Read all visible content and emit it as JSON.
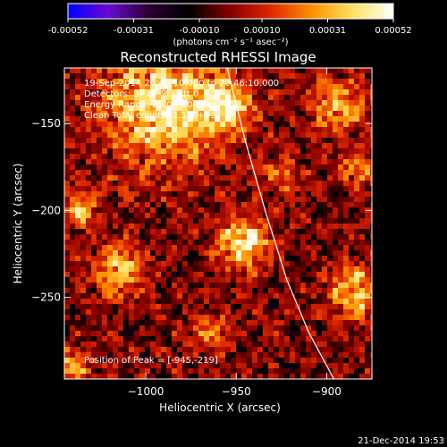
{
  "colorbar": {
    "tick_labels": [
      "-0.00052",
      "-0.00031",
      "-0.00010",
      "0.00010",
      "0.00031",
      "0.00052"
    ],
    "tick_values": [
      -0.00052,
      -0.00031,
      -0.0001,
      0.0001,
      0.00031,
      0.00052
    ],
    "range": [
      -0.00052,
      0.00052
    ],
    "units": "(photons cm⁻² s⁻¹ asec⁻²)",
    "colors": [
      "#0000ff",
      "#6a0ad0",
      "#2a0030",
      "#000000",
      "#8a0000",
      "#e02800",
      "#ff9000",
      "#ffe060",
      "#ffffff"
    ]
  },
  "chart_data": {
    "type": "heatmap",
    "title": "Reconstructed RHESSI Image",
    "xlabel": "Heliocentric X (arcsec)",
    "ylabel": "Heliocentric Y (arcsec)",
    "xlim": [
      -1045,
      -875
    ],
    "ylim": [
      -297,
      -118
    ],
    "x_ticks": [
      -1000,
      -950,
      -900
    ],
    "x_tick_labels": [
      "−1000",
      "−950",
      "−900"
    ],
    "y_ticks": [
      -250,
      -200,
      -150
    ],
    "y_tick_labels": [
      "−250",
      "−200",
      "−150"
    ],
    "limb_curve": [
      [
        -955,
        -118
      ],
      [
        -945,
        -160
      ],
      [
        -934,
        -200
      ],
      [
        -922,
        -240
      ],
      [
        -910,
        -270
      ],
      [
        -896,
        -297
      ]
    ],
    "bright_regions": [
      {
        "x": -990,
        "y": -140,
        "r": 32,
        "amp": 0.00052
      },
      {
        "x": -955,
        "y": -140,
        "r": 14,
        "amp": 0.00045
      },
      {
        "x": -945,
        "y": -219,
        "r": 14,
        "amp": 0.00052
      },
      {
        "x": -1015,
        "y": -235,
        "r": 14,
        "amp": 0.00042
      },
      {
        "x": -1035,
        "y": -200,
        "r": 10,
        "amp": 0.00035
      },
      {
        "x": -893,
        "y": -140,
        "r": 14,
        "amp": 0.0004
      },
      {
        "x": -883,
        "y": -175,
        "r": 10,
        "amp": 0.00032
      },
      {
        "x": -883,
        "y": -247,
        "r": 14,
        "amp": 0.00045
      },
      {
        "x": -1040,
        "y": -290,
        "r": 10,
        "amp": 0.00035
      },
      {
        "x": -965,
        "y": -270,
        "r": 10,
        "amp": 0.00028
      },
      {
        "x": -925,
        "y": -180,
        "r": 10,
        "amp": 0.00025
      }
    ],
    "annotations": {
      "time_range": "19-Sep-2014 20:40:10.000 to 20:46:10.000",
      "detectors": "Detectors: 3F 6F 9F, Att 0",
      "energy": "Energy Range: 25.0 - 50.0 keV",
      "clean": "Clean     Total counts: 3.35E+03",
      "peak": "Position of Peak = [-945,-219]"
    }
  },
  "footer": {
    "timestamp": "21-Dec-2014 19:53"
  }
}
